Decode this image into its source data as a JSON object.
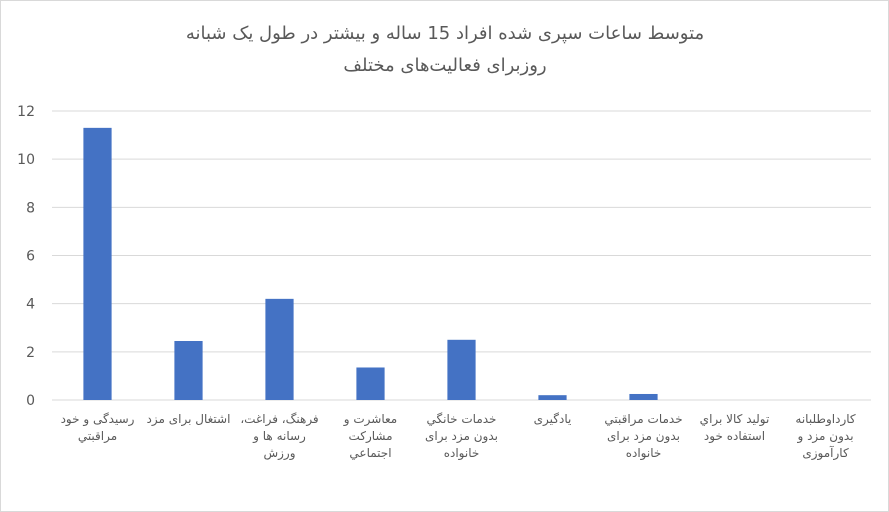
{
  "chart_data": {
    "type": "bar",
    "title": [
      "متوسط ساعات سپری شده افراد 15 ساله و بیشتر در طول یک شبانه",
      "روزبرای فعالیت‌های مختلف"
    ],
    "categories": [
      "رسیدگی و خود مراقبتي",
      "اشتغال برای مزد",
      "فرهنگ، فراغت، رسانه ها و ورزش",
      "معاشرت و مشارکت اجتماعي",
      "خدمات خانگي بدون مزد برای خانواده",
      "یادگیری",
      "خدمات مراقبتي بدون مزد برای خانواده",
      "تولید کالا براي استفاده خود",
      "کارداوطلبانه بدون مزد و کارآموزی"
    ],
    "values": [
      11.3,
      2.45,
      4.2,
      1.35,
      2.5,
      0.2,
      0.25,
      0,
      0
    ],
    "color": "#4472c4",
    "ylim": [
      0,
      12
    ],
    "yticks": [
      0,
      2,
      4,
      6,
      8,
      10,
      12
    ],
    "grid": true
  }
}
